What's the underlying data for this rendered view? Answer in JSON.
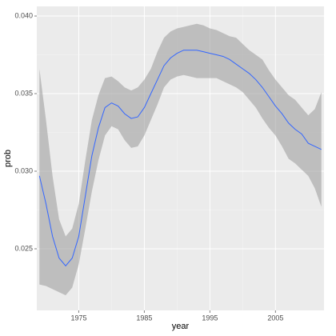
{
  "chart_data": {
    "type": "smooth",
    "x_label": "year",
    "y_label": "prob",
    "x": [
      1969,
      1970,
      1971,
      1972,
      1973,
      1974,
      1975,
      1976,
      1977,
      1978,
      1979,
      1980,
      1981,
      1982,
      1983,
      1984,
      1985,
      1986,
      1987,
      1988,
      1989,
      1990,
      1991,
      1992,
      1993,
      1994,
      1995,
      1996,
      1997,
      1998,
      1999,
      2000,
      2001,
      2002,
      2003,
      2004,
      2005,
      2006,
      2007,
      2008,
      2009,
      2010,
      2011,
      2012
    ],
    "values": [
      0.0297,
      0.0279,
      0.0258,
      0.0244,
      0.0239,
      0.0244,
      0.0258,
      0.0284,
      0.031,
      0.0328,
      0.0341,
      0.0344,
      0.0342,
      0.0337,
      0.0334,
      0.0335,
      0.0341,
      0.035,
      0.0359,
      0.0368,
      0.0373,
      0.0376,
      0.0378,
      0.0378,
      0.0378,
      0.0377,
      0.0376,
      0.0375,
      0.0374,
      0.0372,
      0.0369,
      0.0366,
      0.0363,
      0.0359,
      0.0354,
      0.0348,
      0.0342,
      0.0337,
      0.0331,
      0.0327,
      0.0324,
      0.0318,
      0.0316,
      0.0314
    ],
    "band": {
      "upper": [
        0.0366,
        0.0333,
        0.0297,
        0.0269,
        0.0258,
        0.0263,
        0.0279,
        0.0307,
        0.0333,
        0.0349,
        0.036,
        0.0361,
        0.0358,
        0.0354,
        0.0352,
        0.0354,
        0.0359,
        0.0366,
        0.0377,
        0.0386,
        0.039,
        0.0392,
        0.0393,
        0.0394,
        0.0395,
        0.0394,
        0.0392,
        0.0391,
        0.0389,
        0.0387,
        0.0386,
        0.0382,
        0.0378,
        0.0375,
        0.0372,
        0.0365,
        0.0359,
        0.0354,
        0.0349,
        0.0346,
        0.0341,
        0.0336,
        0.034,
        0.0351
      ],
      "lower": [
        0.0227,
        0.0226,
        0.0224,
        0.0222,
        0.022,
        0.0225,
        0.024,
        0.0263,
        0.0287,
        0.0307,
        0.0323,
        0.0329,
        0.0327,
        0.032,
        0.0315,
        0.0316,
        0.0323,
        0.0333,
        0.0343,
        0.0354,
        0.0359,
        0.0361,
        0.0362,
        0.0361,
        0.036,
        0.036,
        0.036,
        0.036,
        0.0358,
        0.0356,
        0.0354,
        0.0351,
        0.0346,
        0.0341,
        0.0334,
        0.0328,
        0.0323,
        0.0316,
        0.0308,
        0.0305,
        0.0301,
        0.0297,
        0.0289,
        0.0277
      ]
    },
    "color": "#3366ff",
    "band_color": "#999999",
    "xlim": [
      1968.6,
      2012.4
    ],
    "xticks": [
      1975,
      1985,
      1995,
      2005
    ],
    "ylim": [
      0.02103,
      0.04062
    ],
    "yticks": [
      {
        "value": 0.025,
        "label": "0.025"
      },
      {
        "value": 0.03,
        "label": "0.030"
      },
      {
        "value": 0.035,
        "label": "0.035"
      },
      {
        "value": 0.04,
        "label": "0.040"
      }
    ],
    "grid": true
  }
}
